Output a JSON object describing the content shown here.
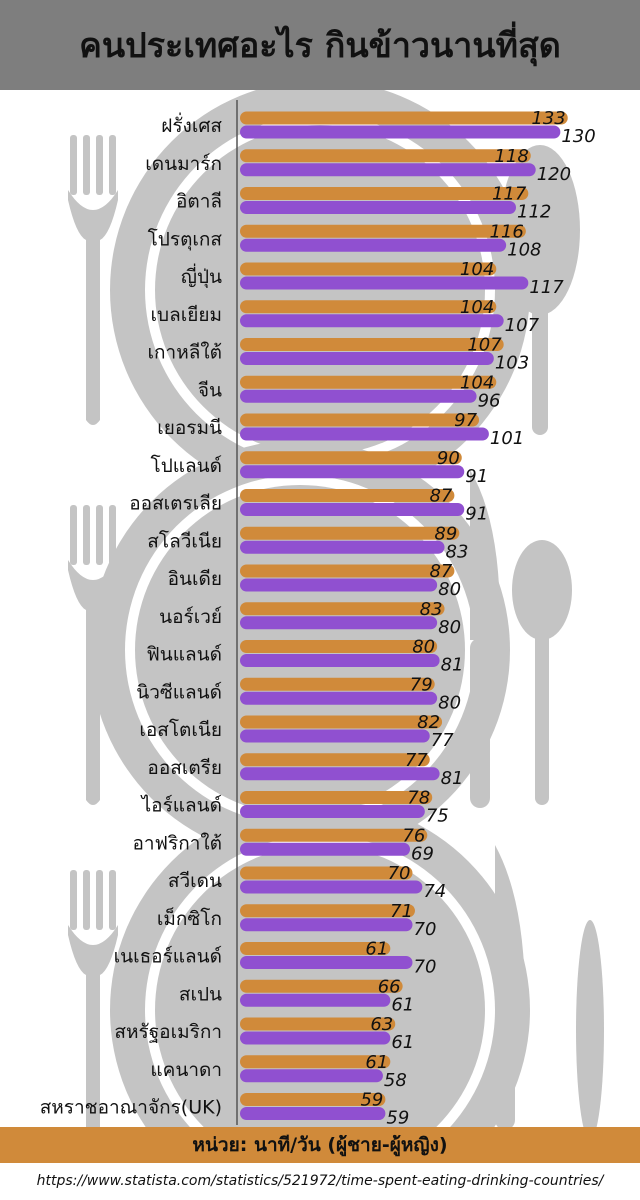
{
  "title": "คนประเทศอะไร กินข้าวนานที่สุด",
  "unit_text": "หน่วย: นาที/วัน (ผู้ชาย-ผู้หญิง)",
  "source_url": "https://www.statista.com/statistics/521972/time-spent-eating-drinking-countries/",
  "colors": {
    "title_bar": "#7e7e7e",
    "men_bar": "#d08a3a",
    "women_bar": "#9050d0",
    "background_cutlery": "#c4c4c4",
    "unit_bar": "#d08a3a"
  },
  "background_icons": [
    "fork-icon",
    "plate-icon",
    "spoon-icon",
    "knife-icon"
  ],
  "chart_data": {
    "type": "bar",
    "orientation": "horizontal",
    "categories": [
      "ฝรั่งเศส",
      "เดนมาร์ก",
      "อิตาลี",
      "โปรตุเกส",
      "ญี่ปุ่น",
      "เบลเยียม",
      "เกาหลีใต้",
      "จีน",
      "เยอรมนี",
      "โปแลนด์",
      "ออสเตรเลีย",
      "สโลวีเนีย",
      "อินเดีย",
      "นอร์เวย์",
      "ฟินแลนด์",
      "นิวซีแลนด์",
      "เอสโตเนีย",
      "ออสเตรีย",
      "ไอร์แลนด์",
      "อาฟริกาใต้",
      "สวีเดน",
      "เม็กซิโก",
      "เนเธอร์แลนด์",
      "สเปน",
      "สหรัฐอเมริกา",
      "แคนาดา",
      "สหราชอาณาจักร(UK)"
    ],
    "series": [
      {
        "values": [
          133,
          118,
          117,
          116,
          104,
          104,
          107,
          104,
          97,
          90,
          87,
          89,
          87,
          83,
          80,
          79,
          82,
          77,
          78,
          76,
          70,
          71,
          61,
          66,
          63,
          61,
          59
        ]
      },
      {
        "values": [
          130,
          120,
          112,
          108,
          117,
          107,
          103,
          96,
          101,
          91,
          91,
          83,
          80,
          80,
          81,
          80,
          77,
          81,
          75,
          69,
          74,
          70,
          70,
          61,
          61,
          58,
          59
        ]
      }
    ],
    "xlim": [
      0,
      140
    ],
    "grid": false,
    "legend": "none"
  }
}
